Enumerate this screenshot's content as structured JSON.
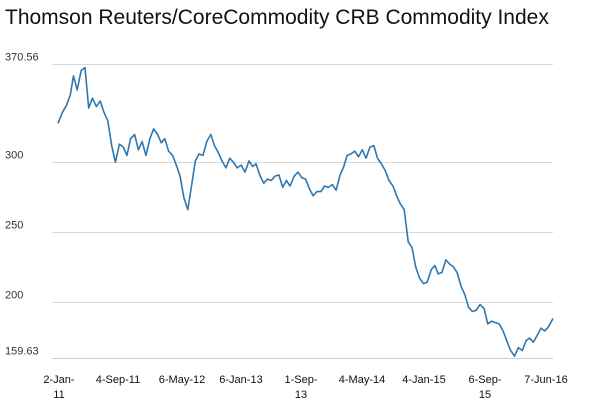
{
  "chart_data": {
    "type": "line",
    "title": "Thomson Reuters/CoreCommodity CRB Commodity Index",
    "xlabel": "",
    "ylabel": "",
    "ylim": [
      159.63,
      370.56
    ],
    "y_ticks": [
      "370.56",
      "300",
      "250",
      "200",
      "159.63"
    ],
    "x_ticks": [
      {
        "line1": "2-Jan-",
        "line2": "11"
      },
      {
        "line1": "4-Sep-11",
        "line2": ""
      },
      {
        "line1": "6-May-12",
        "line2": ""
      },
      {
        "line1": "6-Jan-13",
        "line2": ""
      },
      {
        "line1": "1-Sep-",
        "line2": "13"
      },
      {
        "line1": "4-May-14",
        "line2": ""
      },
      {
        "line1": "4-Jan-15",
        "line2": ""
      },
      {
        "line1": "6-Sep-",
        "line2": "15"
      },
      {
        "line1": "7-Jun-16",
        "line2": ""
      }
    ],
    "grid": "horizontal",
    "legend": "none",
    "color": "#2f77ae",
    "series": [
      {
        "x": [
          "2011-01-02",
          "2011-01-20",
          "2011-02-05",
          "2011-02-20",
          "2011-03-05",
          "2011-03-20",
          "2011-04-05",
          "2011-04-20",
          "2011-05-05",
          "2011-05-20",
          "2011-06-05",
          "2011-06-20",
          "2011-07-05",
          "2011-07-20",
          "2011-08-05",
          "2011-08-20",
          "2011-09-05",
          "2011-09-20",
          "2011-10-05",
          "2011-10-20",
          "2011-11-05",
          "2011-11-20",
          "2011-12-05",
          "2011-12-20",
          "2012-01-05",
          "2012-01-20",
          "2012-02-05",
          "2012-02-20",
          "2012-03-05",
          "2012-03-20",
          "2012-04-05",
          "2012-04-20",
          "2012-05-05",
          "2012-05-20",
          "2012-06-05",
          "2012-06-20",
          "2012-07-05",
          "2012-07-20",
          "2012-08-05",
          "2012-08-20",
          "2012-09-05",
          "2012-09-20",
          "2012-10-05",
          "2012-10-20",
          "2012-11-05",
          "2012-11-20",
          "2012-12-05",
          "2012-12-20",
          "2013-01-05",
          "2013-01-20",
          "2013-02-05",
          "2013-02-20",
          "2013-03-05",
          "2013-03-20",
          "2013-04-05",
          "2013-04-20",
          "2013-05-05",
          "2013-05-20",
          "2013-06-05",
          "2013-06-20",
          "2013-07-05",
          "2013-07-20",
          "2013-08-05",
          "2013-08-20",
          "2013-09-05",
          "2013-09-20",
          "2013-10-05",
          "2013-10-20",
          "2013-11-05",
          "2013-11-20",
          "2013-12-05",
          "2013-12-20",
          "2014-01-05",
          "2014-01-20",
          "2014-02-05",
          "2014-02-20",
          "2014-03-05",
          "2014-03-20",
          "2014-04-05",
          "2014-04-20",
          "2014-05-05",
          "2014-05-20",
          "2014-06-05",
          "2014-06-20",
          "2014-07-05",
          "2014-07-20",
          "2014-08-05",
          "2014-08-20",
          "2014-09-05",
          "2014-09-20",
          "2014-10-05",
          "2014-10-20",
          "2014-11-05",
          "2014-11-20",
          "2014-12-05",
          "2014-12-20",
          "2015-01-05",
          "2015-01-20",
          "2015-02-05",
          "2015-02-20",
          "2015-03-05",
          "2015-03-20",
          "2015-04-05",
          "2015-04-20",
          "2015-05-05",
          "2015-05-20",
          "2015-06-05",
          "2015-06-20",
          "2015-07-05",
          "2015-07-20",
          "2015-08-05",
          "2015-08-20",
          "2015-09-05",
          "2015-09-20",
          "2015-10-05",
          "2015-10-20",
          "2015-11-05",
          "2015-11-20",
          "2015-12-05",
          "2015-12-20",
          "2016-01-05",
          "2016-01-20",
          "2016-02-05",
          "2016-02-20",
          "2016-03-05",
          "2016-03-20",
          "2016-04-05",
          "2016-04-20",
          "2016-05-05",
          "2016-05-20",
          "2016-06-07"
        ],
        "y": [
          328,
          336,
          341,
          348,
          362,
          352,
          366,
          368,
          339,
          346,
          340,
          344,
          336,
          330,
          312,
          300,
          313,
          311,
          305,
          317,
          320,
          309,
          315,
          305,
          317,
          324,
          320,
          314,
          317,
          308,
          305,
          298,
          290,
          275,
          266,
          283,
          301,
          306,
          305,
          315,
          320,
          312,
          307,
          301,
          296,
          303,
          300,
          296,
          298,
          293,
          301,
          297,
          299,
          291,
          285,
          288,
          287,
          290,
          291,
          282,
          287,
          283,
          290,
          293,
          289,
          288,
          281,
          276,
          279,
          279,
          283,
          282,
          284,
          280,
          291,
          297,
          305,
          306,
          308,
          304,
          309,
          303,
          311,
          312,
          303,
          299,
          294,
          287,
          283,
          276,
          270,
          266,
          243,
          239,
          225,
          217,
          213,
          214,
          223,
          226,
          220,
          221,
          230,
          227,
          225,
          221,
          211,
          205,
          196,
          193,
          194,
          198,
          195,
          184,
          186,
          185,
          184,
          179,
          172,
          165,
          161,
          167,
          165,
          172,
          174,
          171,
          176,
          181,
          179,
          182,
          188
        ]
      }
    ]
  }
}
